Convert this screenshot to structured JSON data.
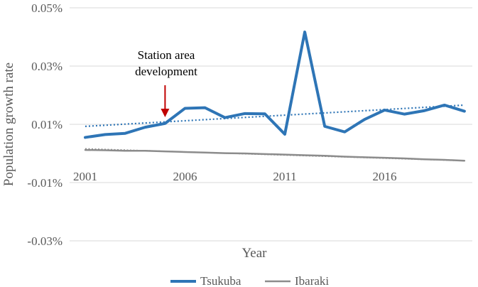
{
  "chart_data": {
    "type": "line",
    "title": "",
    "xlabel": "Year",
    "ylabel": "Population growth rate",
    "x": [
      2001,
      2002,
      2003,
      2004,
      2005,
      2006,
      2007,
      2008,
      2009,
      2010,
      2011,
      2012,
      2013,
      2014,
      2015,
      2016,
      2017,
      2018,
      2019,
      2020
    ],
    "x_tick_labels": [
      "2001",
      "2006",
      "2011",
      "2016"
    ],
    "y_ticks": [
      0.05,
      0.03,
      0.01,
      -0.01,
      -0.03
    ],
    "y_tick_labels": [
      "0.05%",
      "0.03%",
      "0.01%",
      "-0.01%",
      "-0.03%"
    ],
    "ylim": [
      -0.03,
      0.05
    ],
    "grid": true,
    "legend_position": "bottom",
    "series": [
      {
        "name": "Tsukuba",
        "color": "#2e75b6",
        "values": [
          0.0055,
          0.0065,
          0.0069,
          0.009,
          0.0103,
          0.0155,
          0.0157,
          0.0123,
          0.0137,
          0.0136,
          0.0066,
          0.0417,
          0.0093,
          0.0074,
          0.0117,
          0.0149,
          0.0135,
          0.0147,
          0.0166,
          0.0145
        ],
        "trendline": [
          0.0093,
          0.0166
        ]
      },
      {
        "name": "Ibaraki",
        "color": "#8c8c8c",
        "values": [
          0.0012,
          0.0011,
          0.0009,
          0.0009,
          0.0007,
          0.0005,
          0.0003,
          0.0001,
          0.0,
          -0.0002,
          -0.0004,
          -0.0006,
          -0.0008,
          -0.0011,
          -0.0013,
          -0.0015,
          -0.0017,
          -0.002,
          -0.0022,
          -0.0025
        ],
        "trendline": [
          0.0016,
          -0.0025
        ]
      }
    ],
    "annotations": [
      {
        "text_lines": [
          "Station area",
          "development"
        ],
        "x": 2005,
        "arrow_color": "#c00000"
      }
    ]
  }
}
